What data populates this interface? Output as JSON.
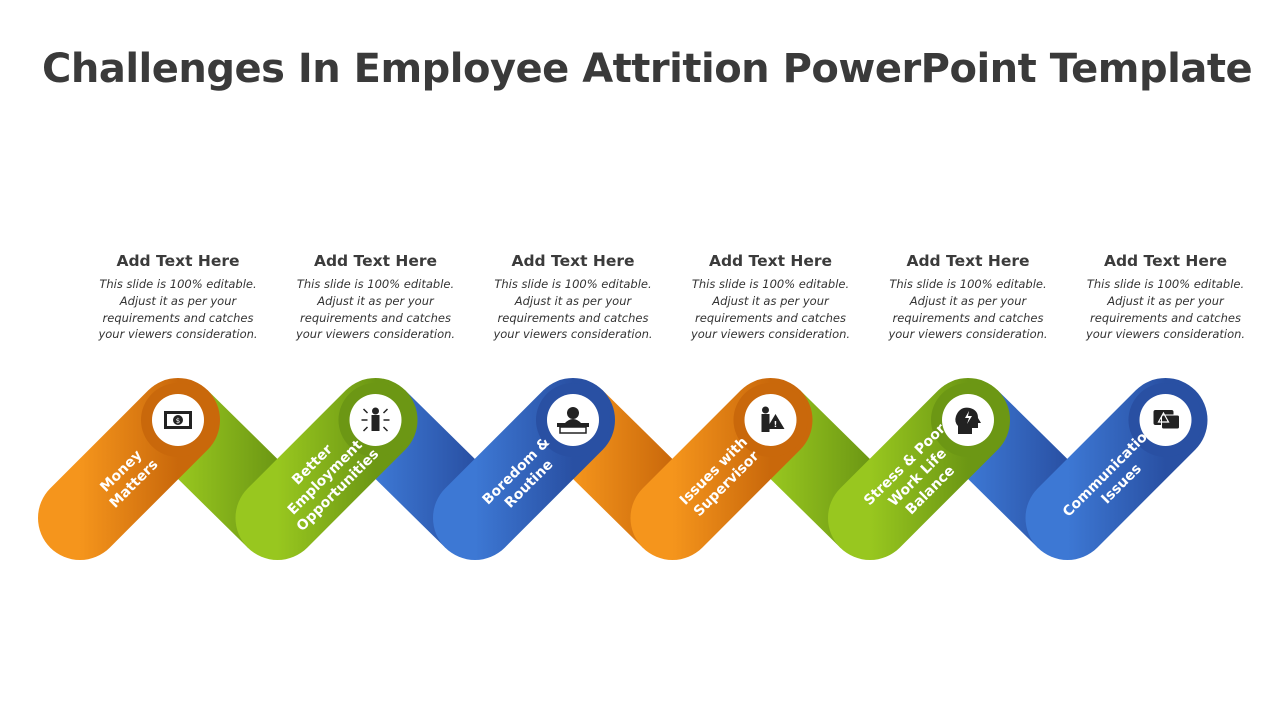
{
  "title": "Challenges In Employee Attrition PowerPoint Template",
  "colors": {
    "orange": [
      "#F5951C",
      "#C9680B"
    ],
    "green": [
      "#98C71F",
      "#6C9714"
    ],
    "blue": [
      "#3D78D4",
      "#2950A3"
    ]
  },
  "steps": [
    {
      "label": [
        "Money",
        "Matters"
      ],
      "color": "orange",
      "icon": "money-bill-icon",
      "heading": "Add Text Here",
      "body": "This slide is 100% editable. Adjust it as per your requirements and catches your viewers consideration."
    },
    {
      "label": [
        "Better",
        "Employment",
        "Opportunities"
      ],
      "color": "green",
      "icon": "businessman-arrows-icon",
      "heading": "Add Text Here",
      "body": "This slide is 100% editable. Adjust it as per your requirements and catches your viewers consideration."
    },
    {
      "label": [
        "Boredom &",
        "Routine"
      ],
      "color": "blue",
      "icon": "bored-person-desk-icon",
      "heading": "Add Text Here",
      "body": "This slide is 100% editable. Adjust it as per your requirements and catches your viewers consideration."
    },
    {
      "label": [
        "Issues with",
        "Supervisor"
      ],
      "color": "orange",
      "icon": "person-warning-icon",
      "heading": "Add Text Here",
      "body": "This slide is 100% editable. Adjust it as per your requirements and catches your viewers consideration."
    },
    {
      "label": [
        "Stress & Poor",
        "Work Life",
        "Balance"
      ],
      "color": "green",
      "icon": "head-lightning-icon",
      "heading": "Add Text Here",
      "body": "This slide is 100% editable. Adjust it as per your requirements and catches your viewers consideration."
    },
    {
      "label": [
        "Communication",
        "Issues"
      ],
      "color": "blue",
      "icon": "chat-warning-icon",
      "heading": "Add Text Here",
      "body": "This slide is 100% editable. Adjust it as per your requirements and catches your viewers consideration."
    }
  ]
}
